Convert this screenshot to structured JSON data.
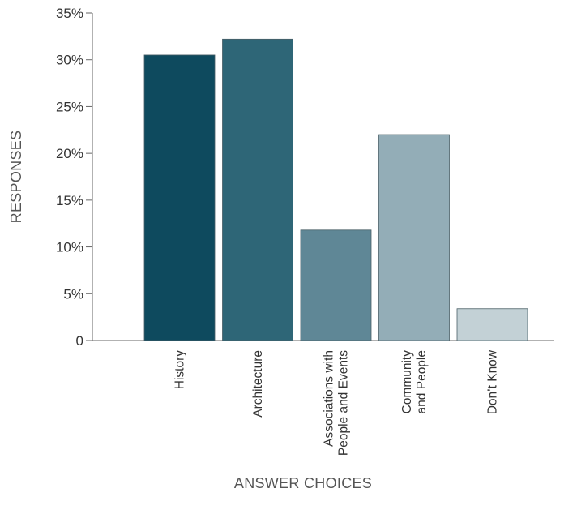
{
  "chart_data": {
    "type": "bar",
    "categories": [
      "History",
      "Architecture",
      "Associations with People and Events",
      "Community and People",
      "Don't Know"
    ],
    "category_labels": [
      [
        "History"
      ],
      [
        "Architecture"
      ],
      [
        "Associations with",
        "People and Events"
      ],
      [
        "Community",
        "and People"
      ],
      [
        "Don’t Know"
      ]
    ],
    "values": [
      30.5,
      32.2,
      11.8,
      22.0,
      3.4
    ],
    "bar_colors": [
      "#0e4a5e",
      "#2e6677",
      "#5f8796",
      "#93adb7",
      "#c3d1d6"
    ],
    "xlabel": "ANSWER CHOICES",
    "ylabel": "RESPONSES",
    "ylim": [
      0,
      35
    ],
    "yticks": [
      0,
      5,
      10,
      15,
      20,
      25,
      30,
      35
    ],
    "ytick_labels": [
      "0",
      "5%",
      "10%",
      "15%",
      "20%",
      "25%",
      "30%",
      "35%"
    ],
    "grid": false,
    "legend": "none"
  }
}
